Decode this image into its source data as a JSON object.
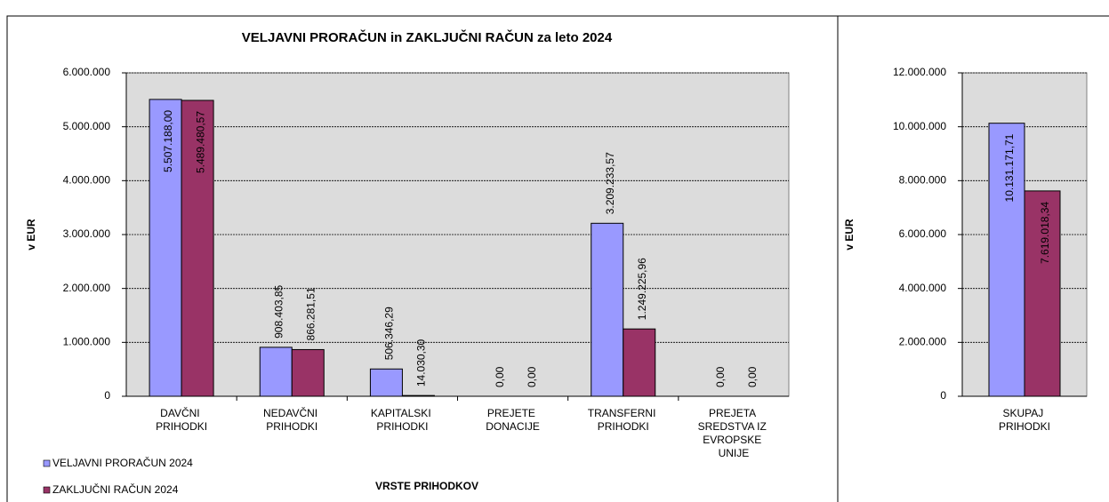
{
  "chart_data": [
    {
      "type": "bar",
      "title": "VELJAVNI PRORAČUN in ZAKLJUČNI RAČUN za leto 2024",
      "y_label": "v EUR",
      "x_label": "VRSTE PRIHODKOV",
      "categories": [
        "DAVČNI PRIHODKI",
        "NEDAVČNI PRIHODKI",
        "KAPITALSKI PRIHODKI",
        "PREJETE DONACIJE",
        "TRANSFERNI PRIHODKI",
        "PREJETA SREDSTVA IZ EVROPSKE UNIJE"
      ],
      "series": [
        {
          "name": "VELJAVNI PRORAČUN 2024",
          "color": "#9999ff",
          "values": [
            5507188.0,
            908403.85,
            506346.29,
            0,
            3209233.57,
            0
          ],
          "value_labels": [
            "5.507.188,00",
            "908.403,85",
            "506.346,29",
            "0,00",
            "3.209.233,57",
            "0,00"
          ]
        },
        {
          "name": "ZAKLJUČNI RAČUN 2024",
          "color": "#993366",
          "values": [
            5489480.57,
            866281.51,
            14030.3,
            0,
            1249225.96,
            0
          ],
          "value_labels": [
            "5.489.480,57",
            "866.281,51",
            "14.030,30",
            "0,00",
            "1.249.225,96",
            "0,00"
          ]
        }
      ],
      "ylim": [
        0,
        6000000
      ],
      "yticks": [
        0,
        {
          "value": 1000000,
          "label": "1.000.000"
        },
        {
          "value": 2000000,
          "label": "2.000.000"
        },
        {
          "value": 3000000,
          "label": "3.000.000"
        },
        {
          "value": 4000000,
          "label": "4.000.000"
        },
        {
          "value": 5000000,
          "label": "5.000.000"
        },
        {
          "value": 6000000,
          "label": "6.000.000"
        }
      ],
      "grid": true,
      "legend": "bottom-left"
    },
    {
      "type": "bar",
      "y_label": "v EUR",
      "categories": [
        "SKUPAJ PRIHODKI"
      ],
      "series": [
        {
          "color": "#9999ff",
          "values": [
            10131171.71
          ],
          "value_labels": [
            "10.131.171,71"
          ]
        },
        {
          "color": "#993366",
          "values": [
            7619018.34
          ],
          "value_labels": [
            "7.619.018,34"
          ]
        }
      ],
      "ylim": [
        0,
        12000000
      ],
      "yticks": [
        0,
        {
          "value": 2000000,
          "label": "2.000.000"
        },
        {
          "value": 4000000,
          "label": "4.000.000"
        },
        {
          "value": 6000000,
          "label": "6.000.000"
        },
        {
          "value": 8000000,
          "label": "8.000.000"
        },
        {
          "value": 10000000,
          "label": "10.000.000"
        },
        {
          "value": 12000000,
          "label": "12.000.000"
        }
      ],
      "grid": true
    }
  ]
}
